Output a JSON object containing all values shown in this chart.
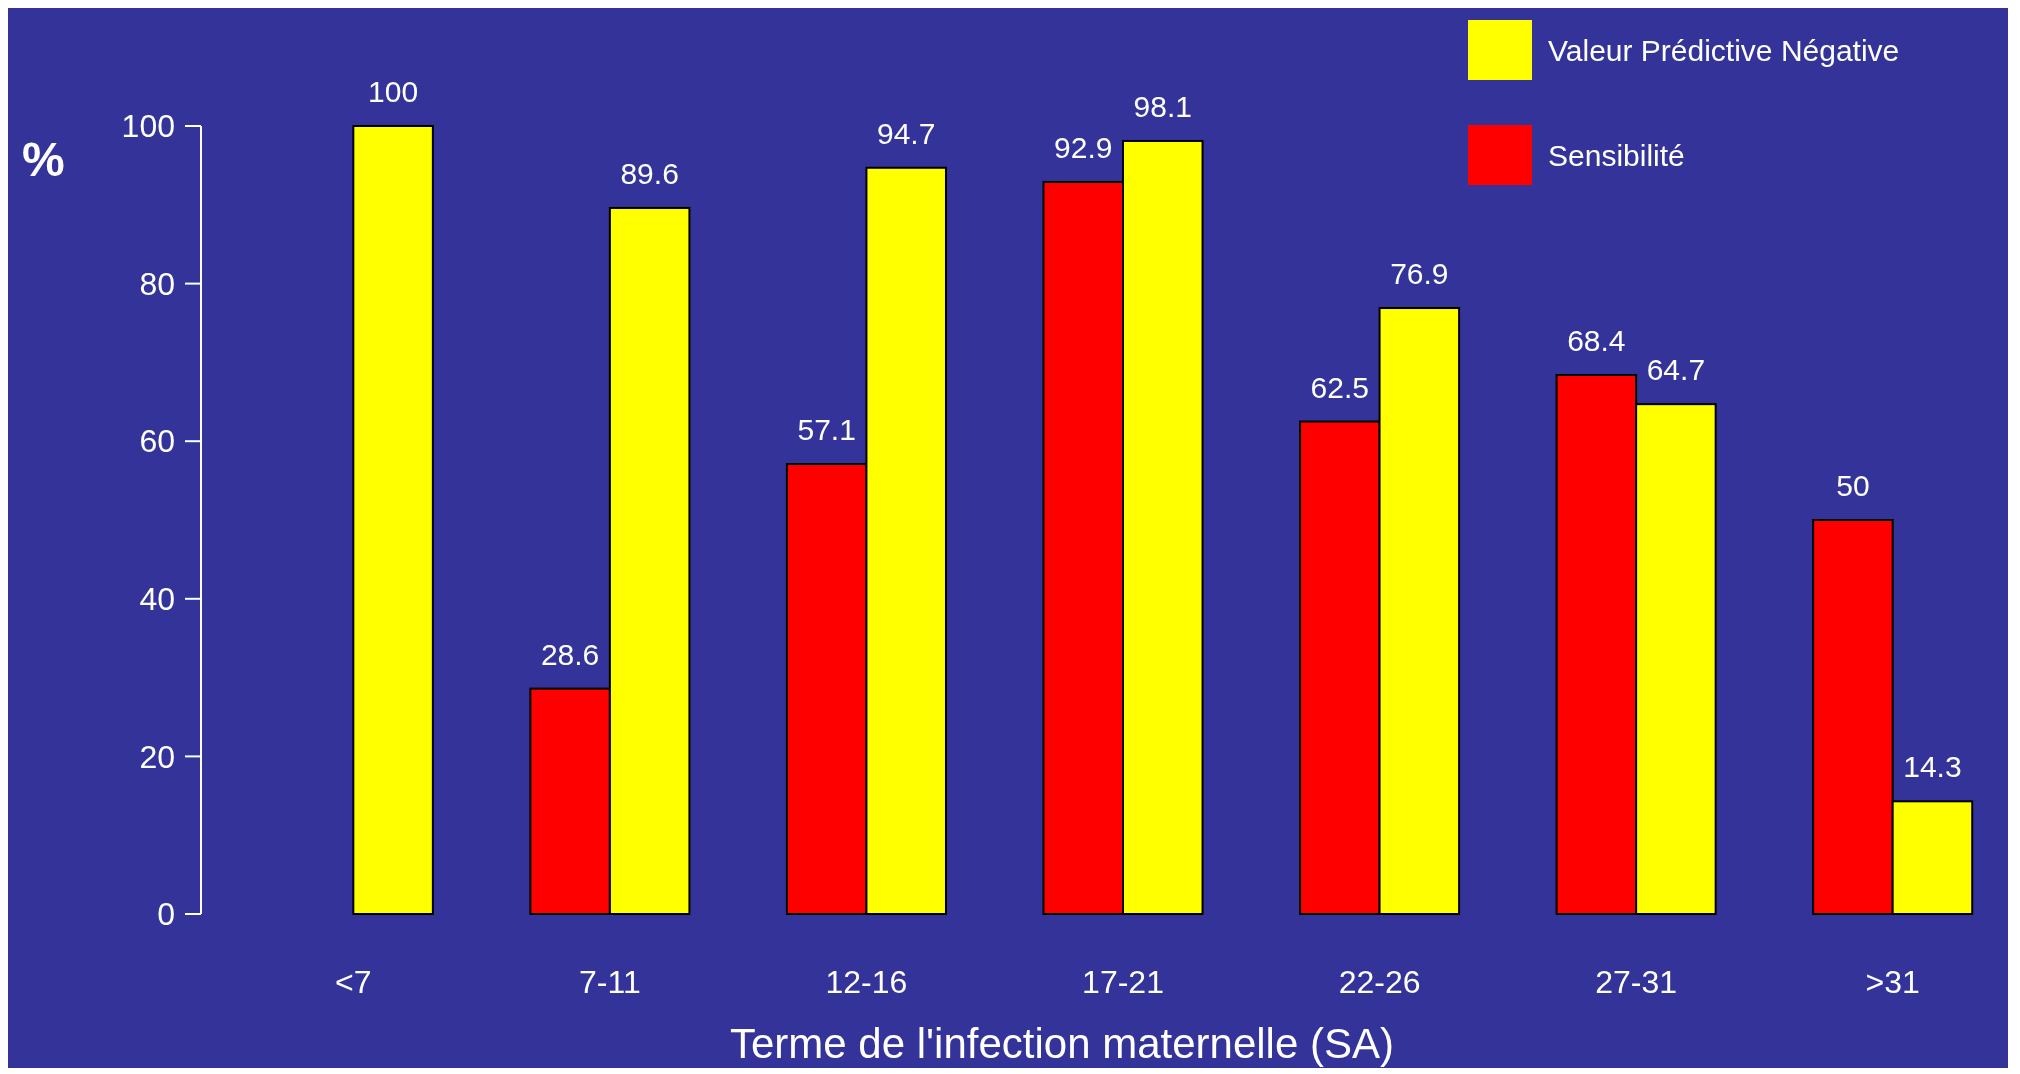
{
  "chart_data": {
    "type": "bar",
    "xlabel": "Terme de l'infection maternelle (SA)",
    "ylabel": "%",
    "categories": [
      "<7",
      "7-11",
      "12-16",
      "17-21",
      "22-26",
      "27-31",
      ">31"
    ],
    "series": [
      {
        "name": "Sensibilité",
        "color": "#ff0000",
        "values": [
          null,
          28.6,
          57.1,
          92.9,
          62.5,
          68.4,
          50
        ]
      },
      {
        "name": "Valeur Prédictive Négative",
        "color": "#ffff00",
        "values": [
          100,
          89.6,
          94.7,
          98.1,
          76.9,
          64.7,
          14.3
        ]
      }
    ],
    "ylim": [
      0,
      100
    ],
    "yticks": [
      0,
      20,
      40,
      60,
      80,
      100
    ],
    "data_labels": true,
    "legend": "top right",
    "grid": false
  }
}
